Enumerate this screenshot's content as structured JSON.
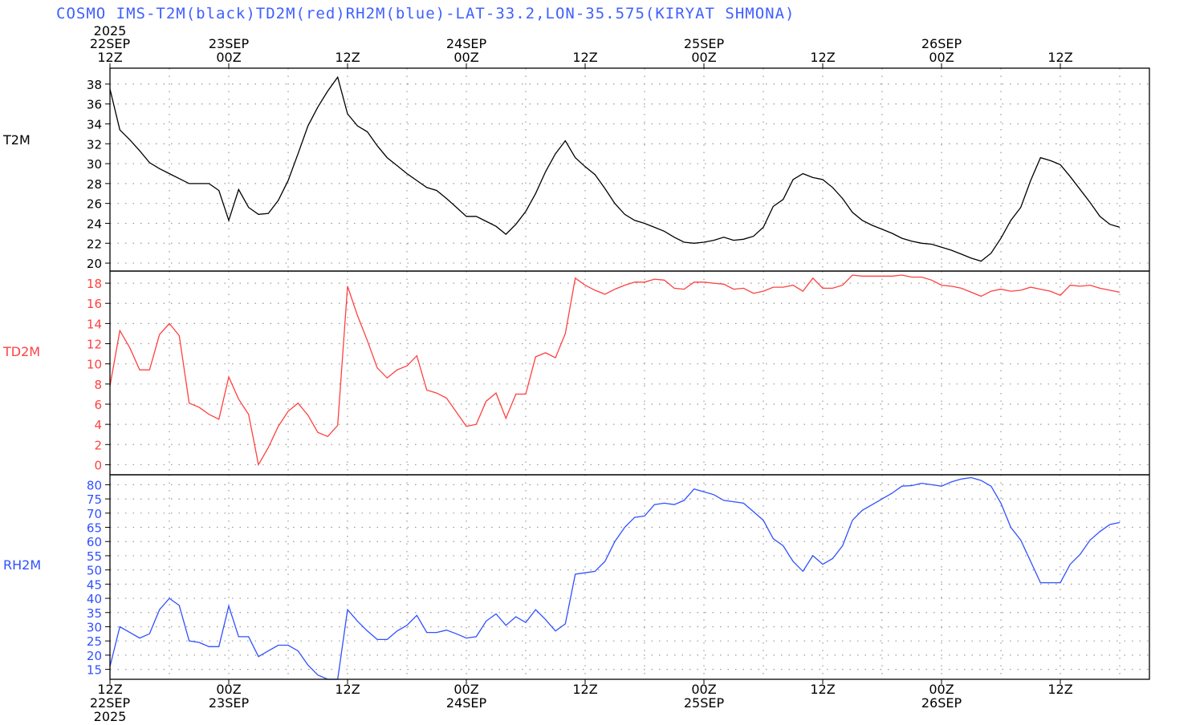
{
  "title": "COSMO IMS-T2M(black)TD2M(red)RH2M(blue)-LAT-33.2,LON-35.575(KIRYAT SHMONA)",
  "colors": {
    "t2m": "#000000",
    "td2m": "#ff4040",
    "rh2m": "#3050ff",
    "grid": "#999999",
    "frame": "#000000"
  },
  "time_axis": {
    "start_hour": 0,
    "end_hour": 105,
    "year": "2025",
    "ticks": [
      {
        "hour": 0,
        "time": "12Z",
        "date": "22SEP",
        "year": "2025"
      },
      {
        "hour": 12,
        "time": "00Z",
        "date": "23SEP"
      },
      {
        "hour": 24,
        "time": "12Z"
      },
      {
        "hour": 36,
        "time": "00Z",
        "date": "24SEP"
      },
      {
        "hour": 48,
        "time": "12Z"
      },
      {
        "hour": 60,
        "time": "00Z",
        "date": "25SEP"
      },
      {
        "hour": 72,
        "time": "12Z"
      },
      {
        "hour": 84,
        "time": "00Z",
        "date": "26SEP"
      },
      {
        "hour": 96,
        "time": "12Z"
      }
    ]
  },
  "chart_data": [
    {
      "type": "line",
      "series": [
        {
          "name": "T2M",
          "color": "#000000",
          "x": [
            0,
            1,
            2,
            3,
            4,
            5,
            6,
            7,
            8,
            9,
            10,
            11,
            12,
            13,
            14,
            15,
            16,
            17,
            18,
            19,
            20,
            21,
            22,
            23,
            24,
            25,
            26,
            27,
            28,
            29,
            30,
            31,
            32,
            33,
            34,
            35,
            36,
            37,
            38,
            39,
            40,
            41,
            42,
            43,
            44,
            45,
            46,
            47,
            48,
            49,
            50,
            51,
            52,
            53,
            54,
            55,
            56,
            57,
            58,
            59,
            60,
            61,
            62,
            63,
            64,
            65,
            66,
            67,
            68,
            69,
            70,
            71,
            72,
            73,
            74,
            75,
            76,
            77,
            78,
            79,
            80,
            81,
            82,
            83,
            84,
            85,
            86,
            87,
            88,
            89,
            90,
            91,
            92,
            93,
            94,
            95,
            96,
            97,
            98,
            99,
            100,
            101,
            102
          ],
          "values": [
            37.5,
            33.4,
            32.4,
            31.3,
            30.1,
            29.5,
            29.0,
            28.5,
            28.0,
            28.0,
            28.0,
            27.3,
            24.3,
            27.4,
            25.6,
            24.9,
            25.0,
            26.3,
            28.3,
            31.0,
            33.8,
            35.7,
            37.3,
            38.7,
            35.0,
            33.8,
            33.2,
            31.8,
            30.6,
            29.8,
            29.0,
            28.3,
            27.6,
            27.3,
            26.5,
            25.6,
            24.7,
            24.7,
            24.2,
            23.7,
            22.9,
            23.9,
            25.2,
            27.0,
            29.2,
            31.0,
            32.3,
            30.6,
            29.7,
            28.9,
            27.5,
            26.0,
            24.9,
            24.3,
            24.0,
            23.6,
            23.2,
            22.6,
            22.1,
            22.0,
            22.1,
            22.3,
            22.6,
            22.3,
            22.4,
            22.7,
            23.6,
            25.7,
            26.4,
            28.4,
            29.0,
            28.6,
            28.4,
            27.6,
            26.5,
            25.1,
            24.3,
            23.8,
            23.4,
            23.0,
            22.5,
            22.2,
            22.0,
            21.9,
            21.6,
            21.3,
            20.9,
            20.5,
            20.2,
            21.0,
            22.5,
            24.3,
            25.6,
            28.3,
            30.6,
            30.3,
            29.9,
            28.7,
            27.4,
            26.1,
            24.7,
            23.9,
            23.6
          ]
        }
      ],
      "ylim": [
        19.2,
        39.6
      ],
      "yticks": [
        20,
        22,
        24,
        26,
        28,
        30,
        32,
        34,
        36,
        38
      ],
      "ylabel": "T2M",
      "grid": true
    },
    {
      "type": "line",
      "series": [
        {
          "name": "TD2M",
          "color": "#ff4040",
          "x": [
            0,
            1,
            2,
            3,
            4,
            5,
            6,
            7,
            8,
            9,
            10,
            11,
            12,
            13,
            14,
            15,
            16,
            17,
            18,
            19,
            20,
            21,
            22,
            23,
            24,
            25,
            26,
            27,
            28,
            29,
            30,
            31,
            32,
            33,
            34,
            35,
            36,
            37,
            38,
            39,
            40,
            41,
            42,
            43,
            44,
            45,
            46,
            47,
            48,
            49,
            50,
            51,
            52,
            53,
            54,
            55,
            56,
            57,
            58,
            59,
            60,
            61,
            62,
            63,
            64,
            65,
            66,
            67,
            68,
            69,
            70,
            71,
            72,
            73,
            74,
            75,
            76,
            77,
            78,
            79,
            80,
            81,
            82,
            83,
            84,
            85,
            86,
            87,
            88,
            89,
            90,
            91,
            92,
            93,
            94,
            95,
            96,
            97,
            98,
            99,
            100,
            101,
            102
          ],
          "values": [
            7.8,
            13.3,
            11.6,
            9.4,
            9.4,
            12.9,
            14.0,
            12.8,
            6.1,
            5.7,
            5.0,
            4.5,
            8.7,
            6.5,
            5.0,
            0.0,
            1.7,
            3.8,
            5.3,
            6.1,
            4.9,
            3.2,
            2.8,
            3.9,
            17.7,
            14.8,
            12.3,
            9.6,
            8.6,
            9.4,
            9.8,
            10.8,
            7.4,
            7.1,
            6.6,
            5.2,
            3.8,
            4.0,
            6.3,
            7.1,
            4.6,
            7.0,
            7.0,
            10.7,
            11.1,
            10.6,
            13.0,
            18.5,
            17.8,
            17.3,
            16.9,
            17.4,
            17.8,
            18.1,
            18.1,
            18.4,
            18.3,
            17.5,
            17.4,
            18.1,
            18.1,
            18.0,
            17.9,
            17.4,
            17.5,
            17.0,
            17.2,
            17.6,
            17.6,
            17.8,
            17.2,
            18.5,
            17.5,
            17.5,
            17.8,
            18.8,
            18.7,
            18.7,
            18.7,
            18.7,
            18.8,
            18.6,
            18.6,
            18.3,
            17.8,
            17.7,
            17.5,
            17.1,
            16.7,
            17.2,
            17.4,
            17.2,
            17.3,
            17.6,
            17.4,
            17.2,
            16.8,
            17.8,
            17.7,
            17.8,
            17.5,
            17.3,
            17.1
          ]
        }
      ],
      "ylim": [
        -1.0,
        19.2
      ],
      "yticks": [
        0,
        2,
        4,
        6,
        8,
        10,
        12,
        14,
        16,
        18
      ],
      "ylabel": "TD2M",
      "grid": true
    },
    {
      "type": "line",
      "series": [
        {
          "name": "RH2M",
          "color": "#3050ff",
          "x": [
            0,
            1,
            2,
            3,
            4,
            5,
            6,
            7,
            8,
            9,
            10,
            11,
            12,
            13,
            14,
            15,
            16,
            17,
            18,
            19,
            20,
            21,
            22,
            23,
            24,
            25,
            26,
            27,
            28,
            29,
            30,
            31,
            32,
            33,
            34,
            35,
            36,
            37,
            38,
            39,
            40,
            41,
            42,
            43,
            44,
            45,
            46,
            47,
            48,
            49,
            50,
            51,
            52,
            53,
            54,
            55,
            56,
            57,
            58,
            59,
            60,
            61,
            62,
            63,
            64,
            65,
            66,
            67,
            68,
            69,
            70,
            71,
            72,
            73,
            74,
            75,
            76,
            77,
            78,
            79,
            80,
            81,
            82,
            83,
            84,
            85,
            86,
            87,
            88,
            89,
            90,
            91,
            92,
            93,
            94,
            95,
            96,
            97,
            98,
            99,
            100,
            101,
            102
          ],
          "values": [
            16.0,
            30.0,
            28.0,
            26.0,
            27.5,
            36.0,
            40.0,
            37.5,
            25.0,
            24.5,
            23.0,
            23.0,
            37.3,
            26.5,
            26.5,
            19.5,
            21.5,
            23.5,
            23.5,
            21.5,
            16.5,
            13.0,
            11.5,
            11.5,
            36.0,
            32.0,
            28.5,
            25.5,
            25.5,
            28.5,
            30.5,
            34.0,
            28.0,
            28.0,
            28.8,
            27.5,
            26.0,
            26.5,
            32.0,
            34.5,
            30.5,
            33.5,
            31.5,
            36.0,
            32.5,
            28.5,
            31.0,
            48.5,
            49.0,
            49.5,
            53.0,
            60.0,
            65.0,
            68.5,
            69.0,
            73.0,
            73.5,
            73.0,
            74.5,
            78.5,
            77.5,
            76.5,
            74.5,
            74.0,
            73.5,
            70.5,
            67.5,
            61.0,
            58.5,
            53.0,
            49.5,
            55.0,
            52.0,
            54.0,
            58.5,
            67.5,
            71.0,
            73.0,
            75.0,
            77.0,
            79.5,
            79.7,
            80.5,
            80.0,
            79.5,
            81.0,
            82.0,
            82.5,
            81.5,
            79.5,
            73.5,
            65.0,
            60.5,
            53.0,
            45.5,
            45.5,
            45.5,
            52.0,
            55.5,
            60.5,
            63.5,
            66.0,
            66.7
          ]
        }
      ],
      "ylim": [
        11.5,
        83.5
      ],
      "yticks": [
        15,
        20,
        25,
        30,
        35,
        40,
        45,
        50,
        55,
        60,
        65,
        70,
        75,
        80
      ],
      "ylabel": "RH2M",
      "grid": true
    }
  ]
}
